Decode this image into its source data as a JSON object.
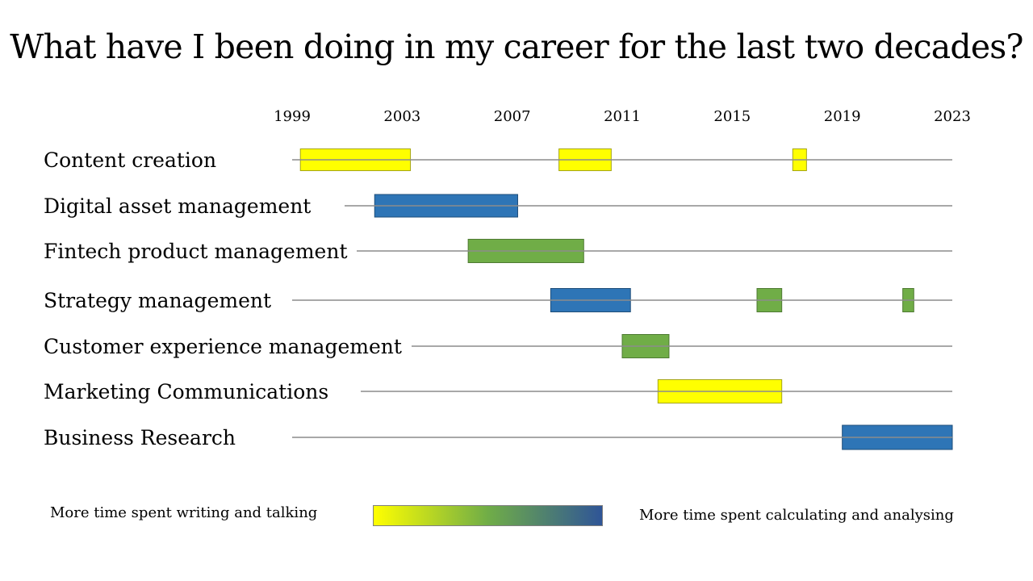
{
  "title": "What have I been doing in my career for the last two decades?",
  "chart_data": {
    "type": "gantt",
    "title": "What have I been doing in my career for the last two decades?",
    "x_ticks": [
      "1999",
      "2003",
      "2007",
      "2011",
      "2015",
      "2019",
      "2023"
    ],
    "xlim": [
      1999,
      2023
    ],
    "rows": [
      {
        "label": "Content creation",
        "segments": [
          {
            "start": 1999.3,
            "end": 2003.3,
            "type": "writing"
          },
          {
            "start": 2008.7,
            "end": 2010.6,
            "type": "writing"
          },
          {
            "start": 2017.2,
            "end": 2017.7,
            "type": "writing"
          }
        ]
      },
      {
        "label": "Digital asset management",
        "segments": [
          {
            "start": 2002.0,
            "end": 2007.2,
            "type": "analysing"
          }
        ]
      },
      {
        "label": "Fintech product management",
        "segments": [
          {
            "start": 2005.4,
            "end": 2009.6,
            "type": "mixed"
          }
        ]
      },
      {
        "label": "Strategy management",
        "segments": [
          {
            "start": 2008.4,
            "end": 2011.3,
            "type": "analysing"
          },
          {
            "start": 2015.9,
            "end": 2016.8,
            "type": "mixed"
          },
          {
            "start": 2021.2,
            "end": 2021.6,
            "type": "mixed"
          }
        ]
      },
      {
        "label": "Customer experience management",
        "segments": [
          {
            "start": 2011.0,
            "end": 2012.7,
            "type": "mixed"
          }
        ]
      },
      {
        "label": "Marketing Communications",
        "segments": [
          {
            "start": 2012.3,
            "end": 2016.8,
            "type": "writing"
          }
        ]
      },
      {
        "label": "Business Research",
        "segments": [
          {
            "start": 2019.0,
            "end": 2023.0,
            "type": "analysing"
          }
        ]
      }
    ],
    "colors": {
      "writing": "#ffff00",
      "mixed": "#70ad47",
      "analysing": "#2e75b6",
      "writing_border": "#a5a517",
      "mixed_border": "#4e7a32",
      "analysing_border": "#1f4e79",
      "timeline": "#8c8c8c"
    },
    "legend": {
      "left_text": "More time spent writing and talking",
      "right_text": "More time spent calculating and analysing",
      "gradient": [
        "#ffff00",
        "#70ad47",
        "#2f5597"
      ]
    },
    "grid": false
  }
}
